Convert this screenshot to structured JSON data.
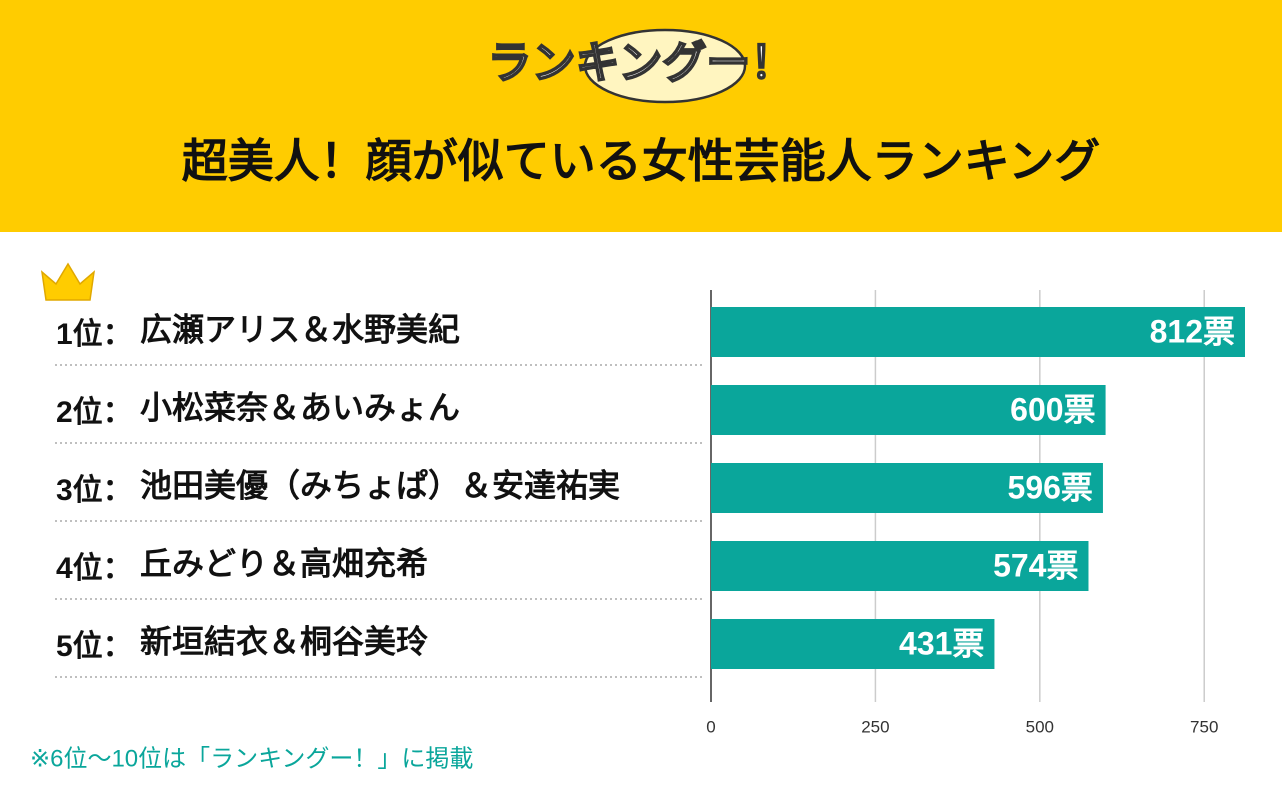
{
  "logo": "ランキングー！",
  "chart_data": {
    "type": "bar",
    "orientation": "horizontal",
    "title": "超美人！顔が似ている女性芸能人ランキング",
    "ranks": [
      "1位：",
      "2位：",
      "3位：",
      "4位：",
      "5位："
    ],
    "categories": [
      "広瀬アリス＆水野美紀",
      "小松菜奈＆あいみょん",
      "池田美優（みちょぱ）＆安達祐実",
      "丘みどり＆高畑充希",
      "新垣結衣＆桐谷美玲"
    ],
    "values": [
      812,
      600,
      596,
      574,
      431
    ],
    "value_labels": [
      "812票",
      "600票",
      "596票",
      "574票",
      "431票"
    ],
    "color": "#0aa69b",
    "xlim": [
      0,
      812
    ],
    "xticks": [
      0,
      250,
      500,
      750
    ],
    "grid": true,
    "note": "※6位〜10位は「ランキングー！」に掲載"
  }
}
